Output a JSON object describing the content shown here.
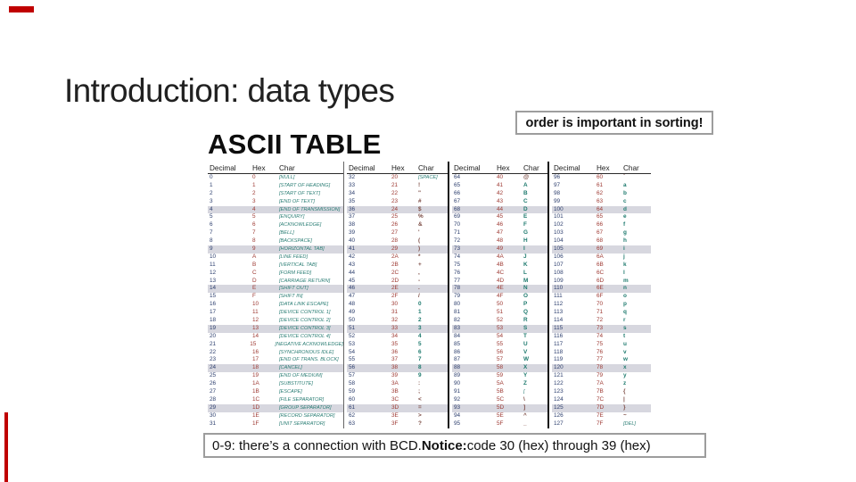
{
  "slide": {
    "title": "Introduction: data types"
  },
  "accent_color": "#c00000",
  "callout_top": {
    "text": "order is important in sorting!"
  },
  "callout_bottom": {
    "prefix": "0-9: there’s a connection with BCD. ",
    "notice": "Notice:",
    "suffix": " code 30 (hex) through 39 (hex)"
  },
  "ascii": {
    "heading": "ASCII TABLE",
    "col_headers": [
      "Decimal",
      "Hex",
      "Char"
    ],
    "shaded_row_indices": [
      4,
      9,
      14,
      19,
      24,
      29
    ],
    "colors": {
      "decimal": "#2d3f6e",
      "hex": "#9e3a33",
      "control_char": "#2a7d74",
      "alnum_char": "#1e7a6e",
      "punct_char": "#7b4a42",
      "row_shade": "#d7d7df"
    },
    "groups": [
      [
        [
          0,
          "0",
          "[NULL]"
        ],
        [
          1,
          "1",
          "[START OF HEADING]"
        ],
        [
          2,
          "2",
          "[START OF TEXT]"
        ],
        [
          3,
          "3",
          "[END OF TEXT]"
        ],
        [
          4,
          "4",
          "[END OF TRANSMISSION]"
        ],
        [
          5,
          "5",
          "[ENQUIRY]"
        ],
        [
          6,
          "6",
          "[ACKNOWLEDGE]"
        ],
        [
          7,
          "7",
          "[BELL]"
        ],
        [
          8,
          "8",
          "[BACKSPACE]"
        ],
        [
          9,
          "9",
          "[HORIZONTAL TAB]"
        ],
        [
          10,
          "A",
          "[LINE FEED]"
        ],
        [
          11,
          "B",
          "[VERTICAL TAB]"
        ],
        [
          12,
          "C",
          "[FORM FEED]"
        ],
        [
          13,
          "D",
          "[CARRIAGE RETURN]"
        ],
        [
          14,
          "E",
          "[SHIFT OUT]"
        ],
        [
          15,
          "F",
          "[SHIFT IN]"
        ],
        [
          16,
          "10",
          "[DATA LINK ESCAPE]"
        ],
        [
          17,
          "11",
          "[DEVICE CONTROL 1]"
        ],
        [
          18,
          "12",
          "[DEVICE CONTROL 2]"
        ],
        [
          19,
          "13",
          "[DEVICE CONTROL 3]"
        ],
        [
          20,
          "14",
          "[DEVICE CONTROL 4]"
        ],
        [
          21,
          "15",
          "[NEGATIVE ACKNOWLEDGE]"
        ],
        [
          22,
          "16",
          "[SYNCHRONOUS IDLE]"
        ],
        [
          23,
          "17",
          "[END OF TRANS. BLOCK]"
        ],
        [
          24,
          "18",
          "[CANCEL]"
        ],
        [
          25,
          "19",
          "[END OF MEDIUM]"
        ],
        [
          26,
          "1A",
          "[SUBSTITUTE]"
        ],
        [
          27,
          "1B",
          "[ESCAPE]"
        ],
        [
          28,
          "1C",
          "[FILE SEPARATOR]"
        ],
        [
          29,
          "1D",
          "[GROUP SEPARATOR]"
        ],
        [
          30,
          "1E",
          "[RECORD SEPARATOR]"
        ],
        [
          31,
          "1F",
          "[UNIT SEPARATOR]"
        ]
      ],
      [
        [
          32,
          "20",
          "[SPACE]"
        ],
        [
          33,
          "21",
          "!"
        ],
        [
          34,
          "22",
          "\""
        ],
        [
          35,
          "23",
          "#"
        ],
        [
          36,
          "24",
          "$"
        ],
        [
          37,
          "25",
          "%"
        ],
        [
          38,
          "26",
          "&"
        ],
        [
          39,
          "27",
          "'"
        ],
        [
          40,
          "28",
          "("
        ],
        [
          41,
          "29",
          ")"
        ],
        [
          42,
          "2A",
          "*"
        ],
        [
          43,
          "2B",
          "+"
        ],
        [
          44,
          "2C",
          ","
        ],
        [
          45,
          "2D",
          "-"
        ],
        [
          46,
          "2E",
          "."
        ],
        [
          47,
          "2F",
          "/"
        ],
        [
          48,
          "30",
          "0"
        ],
        [
          49,
          "31",
          "1"
        ],
        [
          50,
          "32",
          "2"
        ],
        [
          51,
          "33",
          "3"
        ],
        [
          52,
          "34",
          "4"
        ],
        [
          53,
          "35",
          "5"
        ],
        [
          54,
          "36",
          "6"
        ],
        [
          55,
          "37",
          "7"
        ],
        [
          56,
          "38",
          "8"
        ],
        [
          57,
          "39",
          "9"
        ],
        [
          58,
          "3A",
          ":"
        ],
        [
          59,
          "3B",
          ";"
        ],
        [
          60,
          "3C",
          "<"
        ],
        [
          61,
          "3D",
          "="
        ],
        [
          62,
          "3E",
          ">"
        ],
        [
          63,
          "3F",
          "?"
        ]
      ],
      [
        [
          64,
          "40",
          "@"
        ],
        [
          65,
          "41",
          "A"
        ],
        [
          66,
          "42",
          "B"
        ],
        [
          67,
          "43",
          "C"
        ],
        [
          68,
          "44",
          "D"
        ],
        [
          69,
          "45",
          "E"
        ],
        [
          70,
          "46",
          "F"
        ],
        [
          71,
          "47",
          "G"
        ],
        [
          72,
          "48",
          "H"
        ],
        [
          73,
          "49",
          "I"
        ],
        [
          74,
          "4A",
          "J"
        ],
        [
          75,
          "4B",
          "K"
        ],
        [
          76,
          "4C",
          "L"
        ],
        [
          77,
          "4D",
          "M"
        ],
        [
          78,
          "4E",
          "N"
        ],
        [
          79,
          "4F",
          "O"
        ],
        [
          80,
          "50",
          "P"
        ],
        [
          81,
          "51",
          "Q"
        ],
        [
          82,
          "52",
          "R"
        ],
        [
          83,
          "53",
          "S"
        ],
        [
          84,
          "54",
          "T"
        ],
        [
          85,
          "55",
          "U"
        ],
        [
          86,
          "56",
          "V"
        ],
        [
          87,
          "57",
          "W"
        ],
        [
          88,
          "58",
          "X"
        ],
        [
          89,
          "59",
          "Y"
        ],
        [
          90,
          "5A",
          "Z"
        ],
        [
          91,
          "5B",
          "["
        ],
        [
          92,
          "5C",
          "\\"
        ],
        [
          93,
          "5D",
          "]"
        ],
        [
          94,
          "5E",
          "^"
        ],
        [
          95,
          "5F",
          "_"
        ]
      ],
      [
        [
          96,
          "60",
          "`"
        ],
        [
          97,
          "61",
          "a"
        ],
        [
          98,
          "62",
          "b"
        ],
        [
          99,
          "63",
          "c"
        ],
        [
          100,
          "64",
          "d"
        ],
        [
          101,
          "65",
          "e"
        ],
        [
          102,
          "66",
          "f"
        ],
        [
          103,
          "67",
          "g"
        ],
        [
          104,
          "68",
          "h"
        ],
        [
          105,
          "69",
          "i"
        ],
        [
          106,
          "6A",
          "j"
        ],
        [
          107,
          "6B",
          "k"
        ],
        [
          108,
          "6C",
          "l"
        ],
        [
          109,
          "6D",
          "m"
        ],
        [
          110,
          "6E",
          "n"
        ],
        [
          111,
          "6F",
          "o"
        ],
        [
          112,
          "70",
          "p"
        ],
        [
          113,
          "71",
          "q"
        ],
        [
          114,
          "72",
          "r"
        ],
        [
          115,
          "73",
          "s"
        ],
        [
          116,
          "74",
          "t"
        ],
        [
          117,
          "75",
          "u"
        ],
        [
          118,
          "76",
          "v"
        ],
        [
          119,
          "77",
          "w"
        ],
        [
          120,
          "78",
          "x"
        ],
        [
          121,
          "79",
          "y"
        ],
        [
          122,
          "7A",
          "z"
        ],
        [
          123,
          "7B",
          "{"
        ],
        [
          124,
          "7C",
          "|"
        ],
        [
          125,
          "7D",
          "}"
        ],
        [
          126,
          "7E",
          "~"
        ],
        [
          127,
          "7F",
          "[DEL]"
        ]
      ]
    ]
  }
}
